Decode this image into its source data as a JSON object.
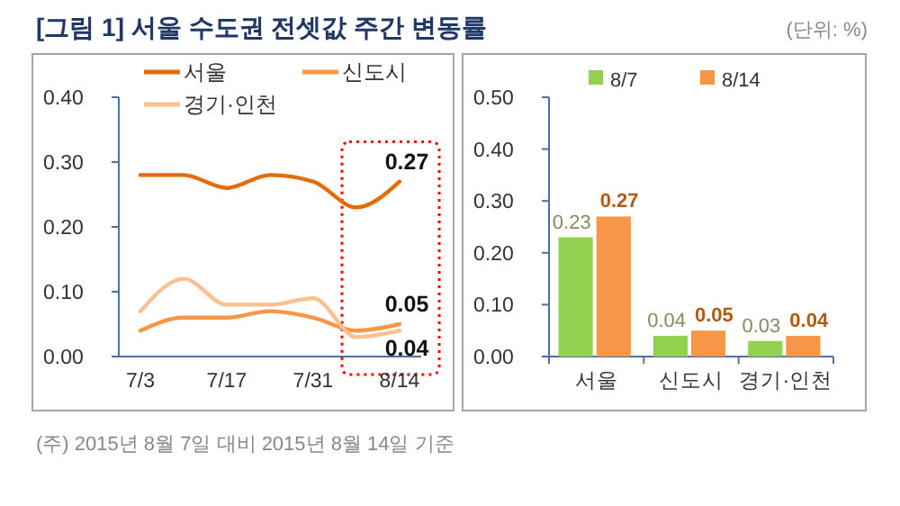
{
  "chart_data": [
    {
      "type": "line",
      "title": "[그림 1] 서울 수도권 전셋값 주간 변동률",
      "annotations": [
        "(단위: %)",
        "(주) 2015년 8월 7일 대비 2015년 8월 14일 기준"
      ],
      "categories": [
        "7/3",
        null,
        "7/17",
        null,
        "7/31",
        null,
        "8/14"
      ],
      "series": [
        {
          "name": "서울",
          "color": "#e46c0a",
          "values": [
            0.28,
            0.28,
            0.26,
            0.28,
            0.27,
            0.23,
            0.27
          ],
          "value_labels": [
            null,
            null,
            null,
            null,
            null,
            null,
            "0.27"
          ]
        },
        {
          "name": "신도시",
          "color": "#f79646",
          "values": [
            0.04,
            0.06,
            0.06,
            0.07,
            0.06,
            0.04,
            0.05
          ],
          "value_labels": [
            null,
            null,
            null,
            null,
            null,
            null,
            "0.05"
          ]
        },
        {
          "name": "경기·인천",
          "color": "#fac090",
          "values": [
            0.07,
            0.12,
            0.08,
            0.08,
            0.09,
            0.03,
            0.04
          ],
          "value_labels": [
            null,
            null,
            null,
            null,
            null,
            null,
            "0.04"
          ]
        }
      ],
      "ylim": [
        0,
        0.4
      ],
      "yticks": [
        {
          "value": 0,
          "label": "0.00"
        },
        {
          "value": 0.1,
          "label": "0.10"
        },
        {
          "value": 0.2,
          "label": "0.20"
        },
        {
          "value": 0.3,
          "label": "0.30"
        },
        {
          "value": 0.4,
          "label": "0.40"
        }
      ],
      "legend": "top",
      "grid": false
    },
    {
      "type": "bar",
      "categories": [
        "서울",
        "신도시",
        "경기·인천"
      ],
      "series": [
        {
          "name": "8/7",
          "color": "#92d050",
          "values": [
            0.23,
            0.04,
            0.03
          ]
        },
        {
          "name": "8/14",
          "color": "#f79646",
          "values": [
            0.27,
            0.05,
            0.04
          ]
        }
      ],
      "ylim": [
        0,
        0.5
      ],
      "yticks": [
        {
          "value": 0,
          "label": "0.00"
        },
        {
          "value": 0.1,
          "label": "0.10"
        },
        {
          "value": 0.2,
          "label": "0.20"
        },
        {
          "value": 0.3,
          "label": "0.30"
        },
        {
          "value": 0.4,
          "label": "0.40"
        },
        {
          "value": 0.5,
          "label": "0.50"
        }
      ],
      "data_labels": true,
      "legend": "top",
      "grid": false
    }
  ]
}
